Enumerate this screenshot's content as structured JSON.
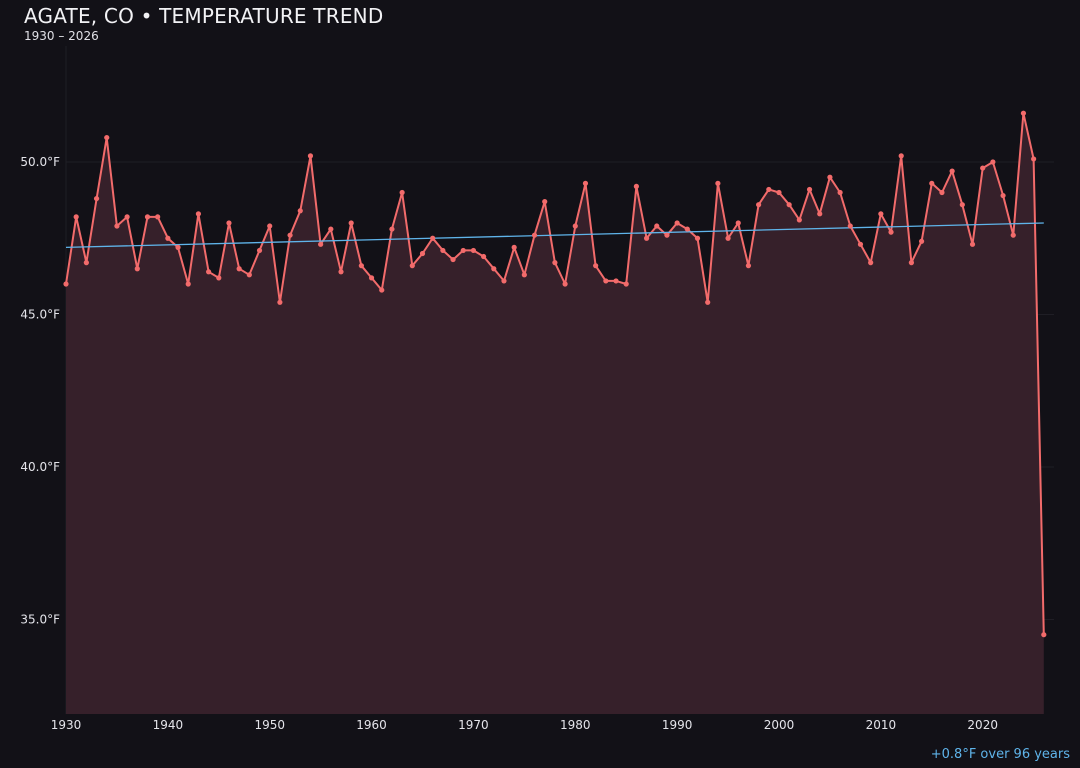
{
  "chart_data": {
    "type": "line",
    "title": "AGATE, CO • TEMPERATURE TREND",
    "subtitle": "1930 – 2026",
    "annotation": "+0.8°F over 96 years",
    "xlabel": "",
    "ylabel": "",
    "xlim": [
      1930,
      2027
    ],
    "ylim": [
      31.9,
      54.0
    ],
    "grid": true,
    "legend": "none",
    "x_ticks": [
      "1930",
      "1940",
      "1950",
      "1960",
      "1970",
      "1980",
      "1990",
      "2000",
      "2010",
      "2020"
    ],
    "y_ticks": [
      {
        "value": 35,
        "label": "35.0°F"
      },
      {
        "value": 40,
        "label": "40.0°F"
      },
      {
        "value": 45,
        "label": "45.0°F"
      },
      {
        "value": 50,
        "label": "50.0°F"
      }
    ],
    "colors": {
      "line": "#f26b6b",
      "fill": "#36202a",
      "trend": "#5fb4ea",
      "background": "#121117"
    },
    "series": [
      {
        "x_start": 1930,
        "values": [
          46.0,
          48.2,
          46.7,
          48.8,
          50.8,
          47.9,
          48.2,
          46.5,
          48.2,
          48.2,
          47.5,
          47.2,
          46.0,
          48.3,
          46.4,
          46.2,
          48.0,
          46.5,
          46.3,
          47.1,
          47.9,
          45.4,
          47.6,
          48.4,
          50.2,
          47.3,
          47.8,
          46.4,
          48.0,
          46.6,
          46.2,
          45.8,
          47.8,
          49.0,
          46.6,
          47.0,
          47.5,
          47.1,
          46.8,
          47.1,
          47.1,
          46.9,
          46.5,
          46.1,
          47.2,
          46.3,
          47.6,
          48.7,
          46.7,
          46.0,
          47.9,
          49.3,
          46.6,
          46.1,
          46.1,
          46.0,
          49.2,
          47.5,
          47.9,
          47.6,
          48.0,
          47.8,
          47.5,
          45.4,
          49.3,
          47.5,
          48.0,
          46.6,
          48.6,
          49.1,
          49.0,
          48.6,
          48.1,
          49.1,
          48.3,
          49.5,
          49.0,
          47.9,
          47.3,
          46.7,
          48.3,
          47.7,
          50.2,
          46.7,
          47.4,
          49.3,
          49.0,
          49.7,
          48.6,
          47.3,
          49.8,
          50.0,
          48.9,
          47.6,
          51.6,
          50.1,
          34.5
        ]
      }
    ],
    "trend": {
      "x": [
        1930,
        2026
      ],
      "y": [
        47.2,
        48.0
      ]
    }
  }
}
